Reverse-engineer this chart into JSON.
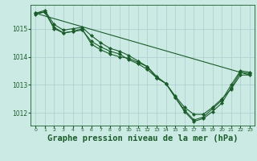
{
  "background_color": "#cceae4",
  "grid_color": "#aacccc",
  "line_color": "#1a5c2a",
  "marker_color": "#1a5c2a",
  "title": "Graphe pression niveau de la mer (hPa)",
  "title_fontsize": 7.5,
  "xlim": [
    -0.5,
    23.5
  ],
  "ylim": [
    1011.55,
    1015.85
  ],
  "yticks": [
    1012,
    1013,
    1014,
    1015
  ],
  "xticks": [
    0,
    1,
    2,
    3,
    4,
    5,
    6,
    7,
    8,
    9,
    10,
    11,
    12,
    13,
    14,
    15,
    16,
    17,
    18,
    19,
    20,
    21,
    22,
    23
  ],
  "series": {
    "line1_x": [
      0,
      1,
      2,
      3,
      4,
      5,
      6,
      7,
      8,
      9,
      10,
      11,
      12,
      13,
      14,
      15,
      16,
      17,
      18,
      19,
      20,
      21,
      22,
      23
    ],
    "line1_y": [
      1015.55,
      1015.65,
      1015.15,
      1014.95,
      1015.0,
      1015.05,
      1014.75,
      1014.5,
      1014.3,
      1014.2,
      1014.05,
      1013.85,
      1013.65,
      1013.3,
      1013.05,
      1012.55,
      1012.05,
      1011.7,
      1011.8,
      1012.05,
      1012.35,
      1012.9,
      1013.45,
      1013.4
    ],
    "line2_x": [
      0,
      1,
      2,
      3,
      4,
      5,
      6,
      7,
      8,
      9,
      10,
      11,
      12,
      13,
      14,
      15,
      16,
      17,
      18,
      19,
      20,
      21,
      22,
      23
    ],
    "line2_y": [
      1015.5,
      1015.6,
      1015.05,
      1014.85,
      1014.9,
      1014.95,
      1014.55,
      1014.35,
      1014.2,
      1014.1,
      1013.9,
      1013.75,
      1013.55,
      1013.25,
      1013.05,
      1012.6,
      1012.2,
      1011.95,
      1011.95,
      1012.2,
      1012.5,
      1012.85,
      1013.35,
      1013.35
    ],
    "line3_x": [
      0,
      1,
      2,
      3,
      4,
      5,
      6,
      7,
      8,
      9,
      10,
      11,
      12,
      13,
      14,
      15,
      16,
      17,
      18,
      19,
      20,
      21,
      22,
      23
    ],
    "line3_y": [
      1015.55,
      1015.6,
      1015.0,
      1014.85,
      1014.9,
      1015.0,
      1014.45,
      1014.25,
      1014.1,
      1014.0,
      1013.95,
      1013.8,
      1013.65,
      1013.25,
      1013.05,
      1012.55,
      1012.1,
      1011.75,
      1011.85,
      1012.15,
      1012.45,
      1013.0,
      1013.5,
      1013.45
    ],
    "line4_x": [
      0,
      23
    ],
    "line4_y": [
      1015.55,
      1013.35
    ]
  }
}
